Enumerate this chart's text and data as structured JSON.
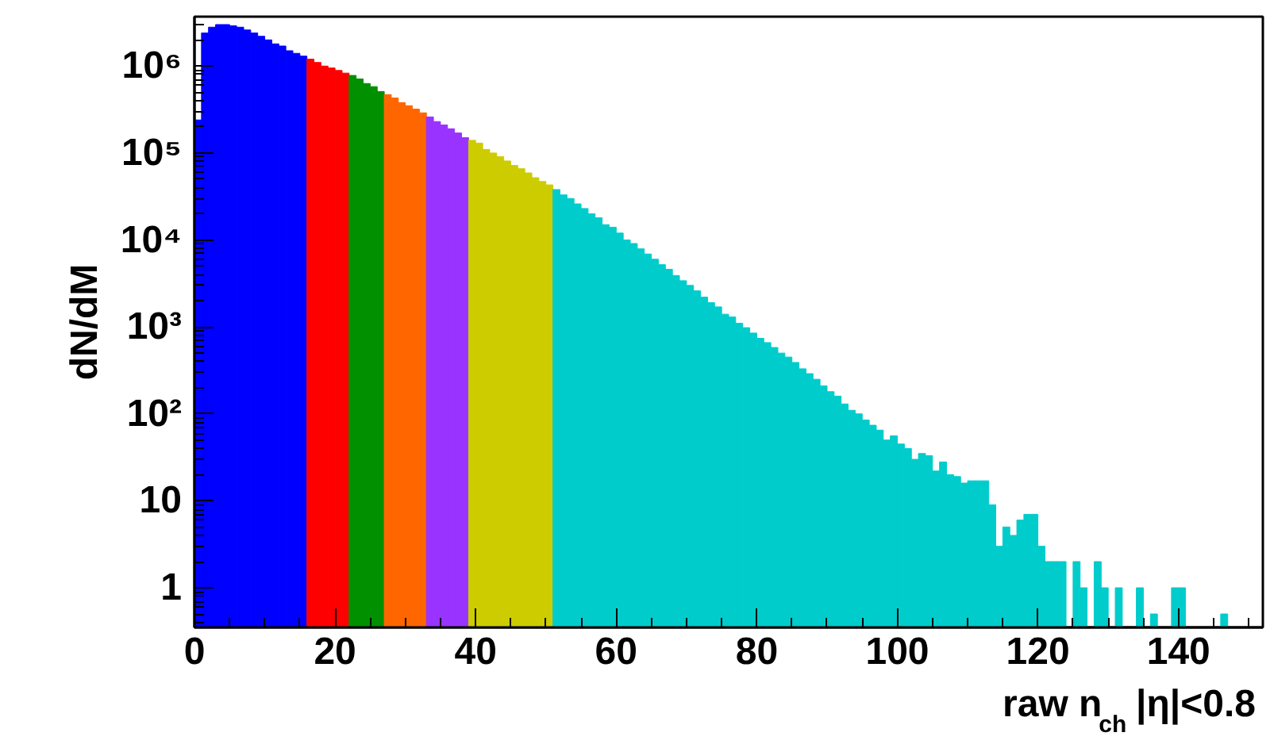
{
  "chart_data": {
    "type": "histogram",
    "xlabel": "raw n$_{ch}$ |η|<0.8",
    "ylabel": "dN/dM",
    "log": "y",
    "grid": false,
    "xlim": [
      0,
      152
    ],
    "ylim": [
      0.35,
      3700000
    ],
    "xticks": [
      0,
      20,
      40,
      60,
      80,
      100,
      120,
      140
    ],
    "yticks": [
      {
        "value": 1,
        "label": "1"
      },
      {
        "value": 10,
        "label": "10"
      },
      {
        "value": 100,
        "label": "10²"
      },
      {
        "value": 1000,
        "label": "10³"
      },
      {
        "value": 10000,
        "label": "10⁴"
      },
      {
        "value": 100000,
        "label": "10⁵"
      },
      {
        "value": 1000000,
        "label": "10⁶"
      }
    ],
    "bins": [
      0,
      1,
      2,
      3,
      4,
      5,
      6,
      7,
      8,
      9,
      10,
      11,
      12,
      13,
      14,
      15,
      16,
      17,
      18,
      19,
      20,
      21,
      22,
      23,
      24,
      25,
      26,
      27,
      28,
      29,
      30,
      31,
      32,
      33,
      34,
      35,
      36,
      37,
      38,
      39,
      40,
      41,
      42,
      43,
      44,
      45,
      46,
      47,
      48,
      49,
      50,
      51,
      52,
      53,
      54,
      55,
      56,
      57,
      58,
      59,
      60,
      61,
      62,
      63,
      64,
      65,
      66,
      67,
      68,
      69,
      70,
      71,
      72,
      73,
      74,
      75,
      76,
      77,
      78,
      79,
      80,
      81,
      82,
      83,
      84,
      85,
      86,
      87,
      88,
      89,
      90,
      91,
      92,
      93,
      94,
      95,
      96,
      97,
      98,
      99,
      100,
      101,
      102,
      103,
      104,
      105,
      106,
      107,
      108,
      109,
      110,
      111,
      112,
      113,
      114,
      115,
      116,
      117,
      118,
      119,
      120,
      121,
      122,
      123,
      124,
      125,
      126,
      127,
      128,
      129,
      130,
      131,
      132,
      133,
      134,
      135,
      136,
      137,
      138,
      139,
      140,
      141,
      142,
      143,
      144,
      145,
      146,
      147,
      148,
      149,
      150,
      151,
      152
    ],
    "values": [
      240000,
      2400000,
      2800000,
      3000000,
      3000000,
      2900000,
      2800000,
      2600000,
      2400000,
      2200000,
      2000000,
      1800000,
      1700000,
      1500000,
      1400000,
      1300000,
      1200000,
      1100000,
      1000000,
      950000,
      890000,
      830000,
      780000,
      710000,
      630000,
      580000,
      510000,
      470000,
      430000,
      380000,
      350000,
      320000,
      290000,
      260000,
      230000,
      210000,
      190000,
      170000,
      150000,
      140000,
      130000,
      110000,
      100000,
      91000,
      81000,
      72000,
      66000,
      59000,
      52000,
      47000,
      43000,
      38000,
      33000,
      30000,
      26000,
      23000,
      20000,
      18000,
      15000,
      14000,
      12000,
      10000,
      9100,
      7900,
      6900,
      6000,
      5200,
      4600,
      3900,
      3400,
      3000,
      2600,
      2200,
      1900,
      1700,
      1400,
      1300,
      1100,
      980,
      850,
      740,
      660,
      580,
      500,
      450,
      390,
      330,
      290,
      250,
      210,
      180,
      160,
      130,
      110,
      100,
      85,
      74,
      65,
      50,
      56,
      45,
      40,
      30,
      35,
      33,
      22,
      28,
      20,
      19,
      16,
      17,
      17,
      17,
      9,
      3,
      5,
      4,
      6,
      7,
      7,
      3,
      2,
      2,
      2,
      null,
      2,
      1,
      null,
      2,
      1,
      null,
      1,
      null,
      null,
      1,
      null,
      0.5,
      null,
      null,
      1,
      1,
      null,
      null,
      null,
      null,
      null,
      0.5,
      null,
      null,
      null,
      null,
      null
    ],
    "colors": [
      "#0000ff",
      "#0000ff",
      "#0000ff",
      "#0000ff",
      "#0000ff",
      "#0000ff",
      "#0000ff",
      "#0000ff",
      "#0000ff",
      "#0000ff",
      "#0000ff",
      "#0000ff",
      "#0000ff",
      "#0000ff",
      "#0000ff",
      "#0000ff",
      "#ff0000",
      "#ff0000",
      "#ff0000",
      "#ff0000",
      "#ff0000",
      "#ff0000",
      "#009000",
      "#009000",
      "#009000",
      "#009000",
      "#009000",
      "#ff6600",
      "#ff6600",
      "#ff6600",
      "#ff6600",
      "#ff6600",
      "#ff6600",
      "#9933ff",
      "#9933ff",
      "#9933ff",
      "#9933ff",
      "#9933ff",
      "#9933ff",
      "#cccc00",
      "#cccc00",
      "#cccc00",
      "#cccc00",
      "#cccc00",
      "#cccc00",
      "#cccc00",
      "#cccc00",
      "#cccc00",
      "#cccc00",
      "#cccc00",
      "#cccc00",
      "#00cccc",
      "#00cccc",
      "#00cccc",
      "#00cccc",
      "#00cccc",
      "#00cccc",
      "#00cccc",
      "#00cccc",
      "#00cccc",
      "#00cccc",
      "#00cccc",
      "#00cccc",
      "#00cccc",
      "#00cccc",
      "#00cccc",
      "#00cccc",
      "#00cccc",
      "#00cccc",
      "#00cccc",
      "#00cccc",
      "#00cccc",
      "#00cccc",
      "#00cccc",
      "#00cccc",
      "#00cccc",
      "#00cccc",
      "#00cccc",
      "#00cccc",
      "#00cccc",
      "#00cccc",
      "#00cccc",
      "#00cccc",
      "#00cccc",
      "#00cccc",
      "#00cccc",
      "#00cccc",
      "#00cccc",
      "#00cccc",
      "#00cccc",
      "#00cccc",
      "#00cccc",
      "#00cccc",
      "#00cccc",
      "#00cccc",
      "#00cccc",
      "#00cccc",
      "#00cccc",
      "#00cccc",
      "#00cccc",
      "#00cccc",
      "#00cccc",
      "#00cccc",
      "#00cccc",
      "#00cccc",
      "#00cccc",
      "#00cccc",
      "#00cccc",
      "#00cccc",
      "#00cccc",
      "#00cccc",
      "#00cccc",
      "#00cccc",
      "#00cccc",
      "#00cccc",
      "#00cccc",
      "#00cccc",
      "#00cccc",
      "#00cccc",
      "#00cccc",
      "#00cccc",
      "#00cccc",
      "#00cccc",
      "#00cccc",
      "#00cccc",
      "#00cccc",
      "#00cccc",
      "#00cccc",
      "#00cccc",
      "#00cccc",
      "#00cccc",
      "#00cccc",
      "#00cccc",
      "#00cccc",
      "#00cccc",
      "#00cccc",
      "#00cccc",
      "#00cccc",
      "#00cccc",
      "#00cccc",
      "#00cccc",
      "#00cccc",
      "#00cccc",
      "#00cccc",
      "#00cccc",
      "#00cccc",
      "#00cccc",
      "#00cccc",
      "#00cccc",
      "#00cccc",
      "#00cccc",
      "#00cccc"
    ]
  }
}
